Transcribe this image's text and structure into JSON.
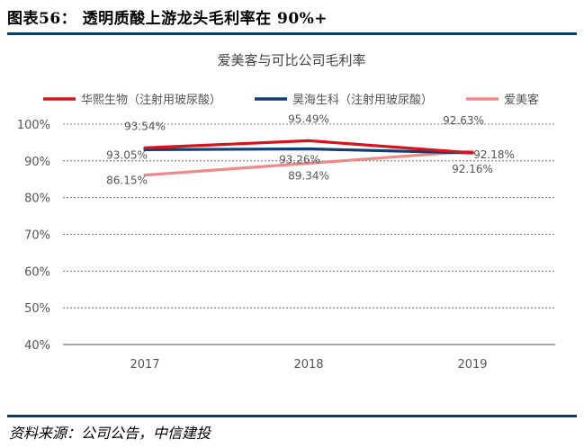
{
  "header": {
    "figure_title": "图表56： 透明质酸上游龙头毛利率在 90%+"
  },
  "footer": {
    "source": "资料来源：公司公告，中信建投"
  },
  "chart_data": {
    "type": "line",
    "title": "爱美客与可比公司毛利率",
    "categories": [
      "2017",
      "2018",
      "2019"
    ],
    "y_ticks": [
      "40%",
      "50%",
      "60%",
      "70%",
      "80%",
      "90%",
      "100%"
    ],
    "ylim": [
      40,
      100
    ],
    "legend_position": "top",
    "series": [
      {
        "name": "华熙生物（注射用玻尿酸）",
        "color": "#d7141c",
        "values": [
          93.54,
          95.49,
          92.18
        ],
        "labels": [
          "93.54%",
          "95.49%",
          "92.18%"
        ]
      },
      {
        "name": "昊海生科（注射用玻尿酸）",
        "color": "#0f3f73",
        "values": [
          93.05,
          93.26,
          92.16
        ],
        "labels": [
          "93.05%",
          "93.26%",
          "92.16%"
        ]
      },
      {
        "name": "爱美客",
        "color": "#f08a8a",
        "values": [
          86.15,
          89.34,
          92.63
        ],
        "labels": [
          "86.15%",
          "89.34%",
          "92.63%"
        ]
      }
    ]
  }
}
